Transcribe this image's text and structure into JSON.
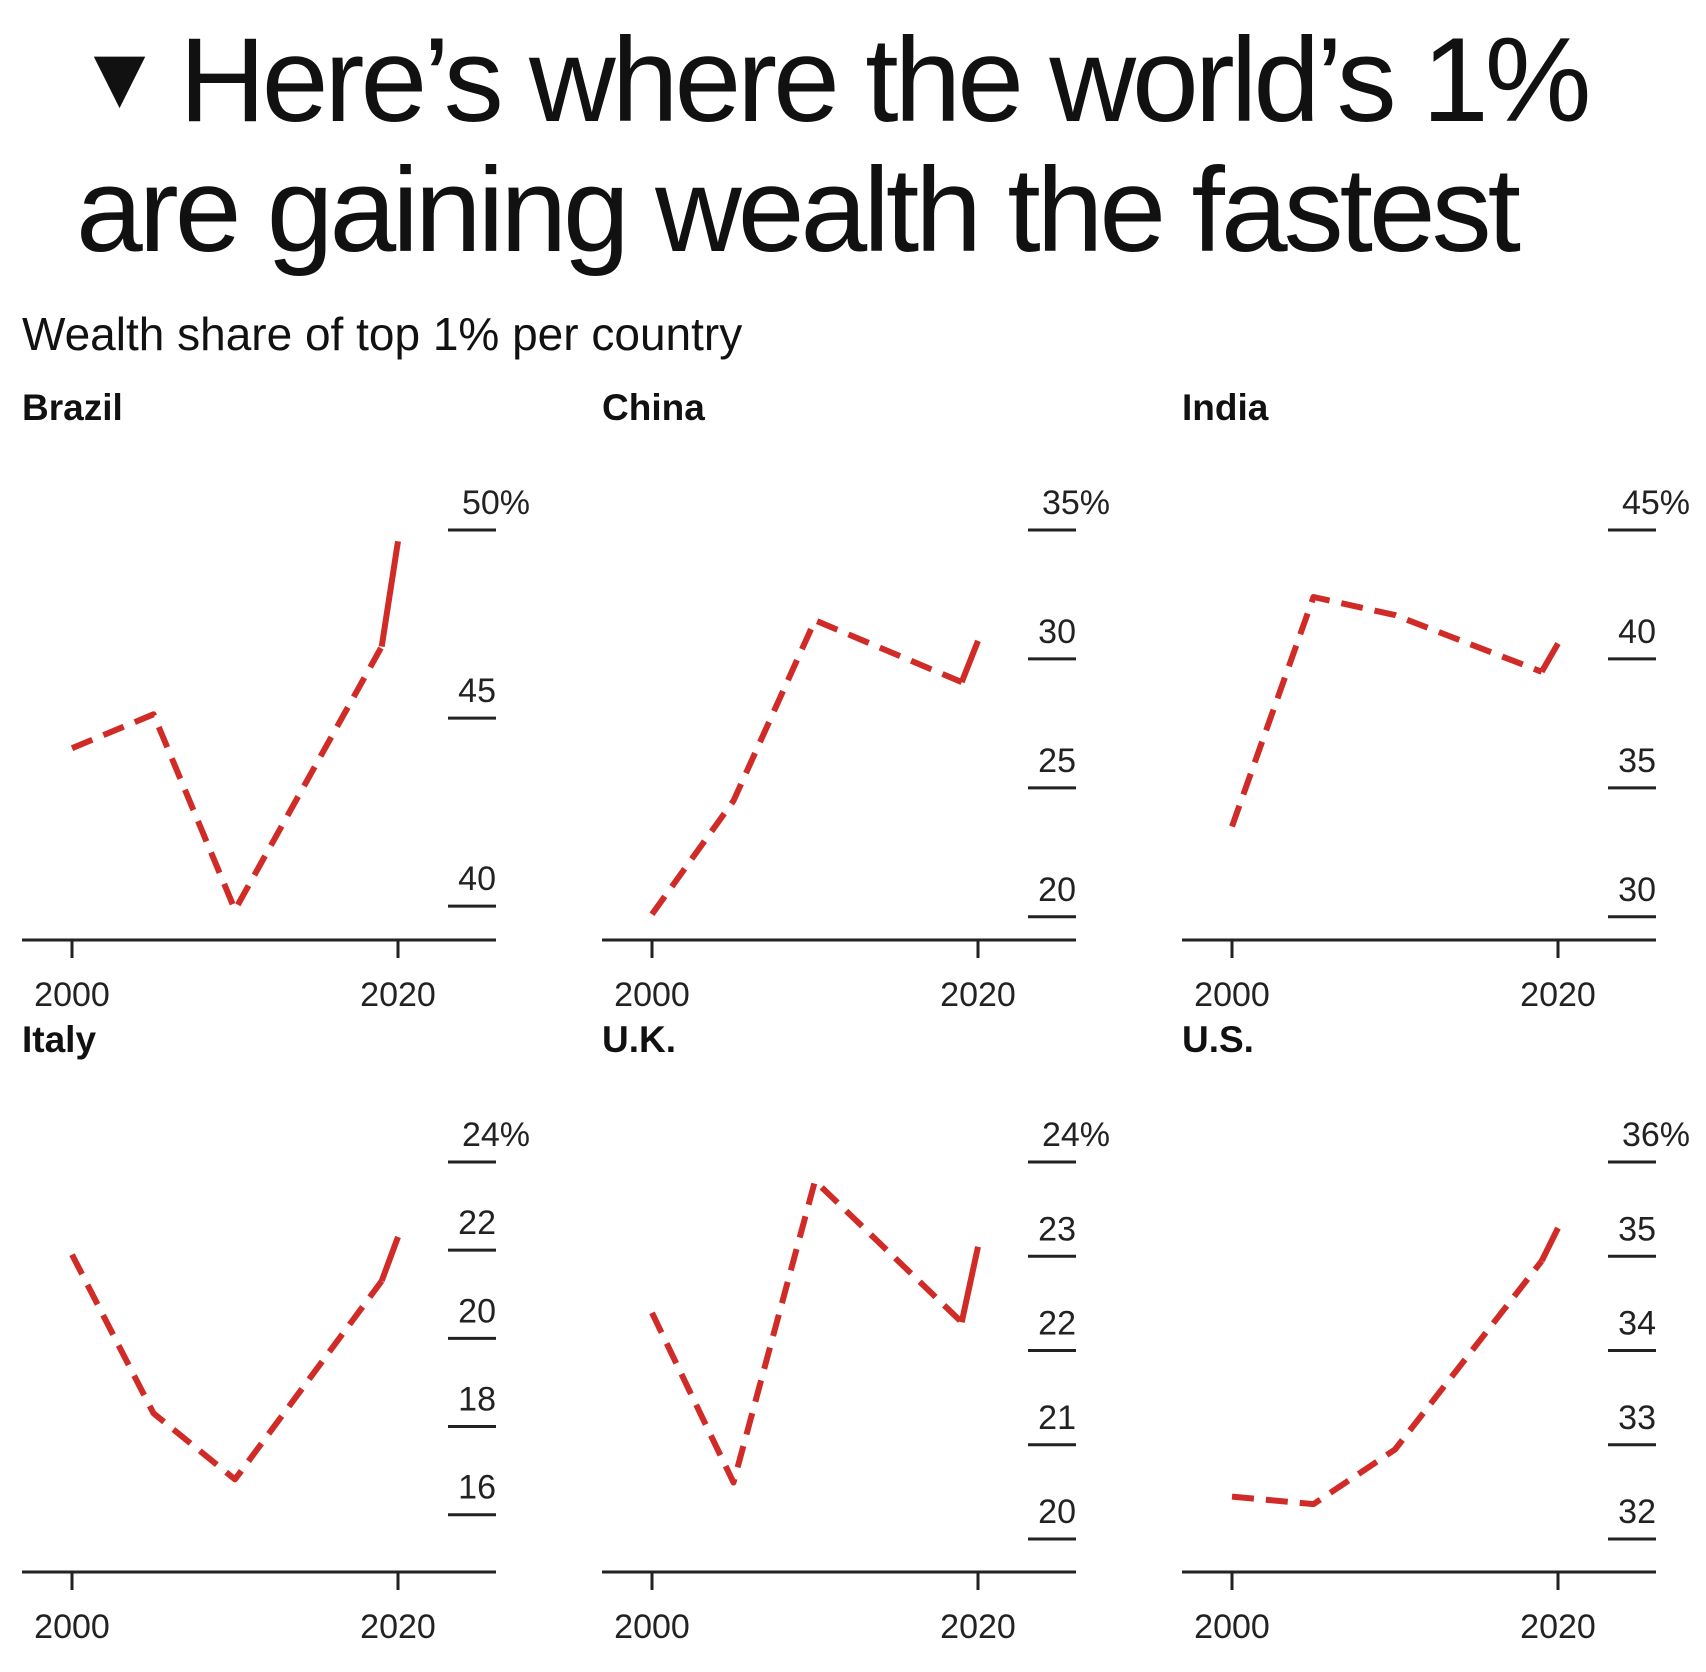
{
  "header": {
    "marker": "▼",
    "title_line1": "Here’s where the world’s 1%",
    "title_line2": "are gaining wealth the fastest",
    "subtitle": "Wealth share of top 1% per country"
  },
  "colors": {
    "series": "#d12b27",
    "text": "#111111",
    "axis": "#222222"
  },
  "chart_data": [
    {
      "type": "line",
      "title": "Brazil",
      "x": [
        2000,
        2005,
        2010,
        2019,
        2020
      ],
      "y": [
        44.2,
        45.1,
        39.9,
        46.9,
        49.7
      ],
      "solid_from_x": 2019,
      "xlim": [
        2000,
        2020
      ],
      "ylim": [
        39.1,
        50
      ],
      "yticks": [
        40,
        45,
        50
      ],
      "ytick_labels": [
        "40",
        "45",
        "50%"
      ],
      "xticks": [
        2000,
        2020
      ],
      "xtick_labels": [
        "2000",
        "2020"
      ]
    },
    {
      "type": "line",
      "title": "China",
      "x": [
        2000,
        2005,
        2010,
        2019,
        2020
      ],
      "y": [
        20.1,
        24.5,
        31.5,
        29.1,
        30.7
      ],
      "solid_from_x": 2019,
      "xlim": [
        2000,
        2020
      ],
      "ylim": [
        19.1,
        35
      ],
      "yticks": [
        20,
        25,
        30,
        35
      ],
      "ytick_labels": [
        "20",
        "25",
        "30",
        "35%"
      ],
      "xticks": [
        2000,
        2020
      ],
      "xtick_labels": [
        "2000",
        "2020"
      ]
    },
    {
      "type": "line",
      "title": "India",
      "x": [
        2000,
        2005,
        2010,
        2019,
        2020
      ],
      "y": [
        33.5,
        42.4,
        41.7,
        39.5,
        40.6
      ],
      "solid_from_x": 2019,
      "xlim": [
        2000,
        2020
      ],
      "ylim": [
        29.1,
        45
      ],
      "yticks": [
        30,
        35,
        40,
        45
      ],
      "ytick_labels": [
        "30",
        "35",
        "40",
        "45%"
      ],
      "xticks": [
        2000,
        2020
      ],
      "xtick_labels": [
        "2000",
        "2020"
      ]
    },
    {
      "type": "line",
      "title": "Italy",
      "x": [
        2000,
        2005,
        2010,
        2019,
        2020
      ],
      "y": [
        21.9,
        18.3,
        16.8,
        21.3,
        22.3
      ],
      "solid_from_x": 2019,
      "xlim": [
        2000,
        2020
      ],
      "ylim": [
        14.7,
        24
      ],
      "yticks": [
        16,
        18,
        20,
        22,
        24
      ],
      "ytick_labels": [
        "16",
        "18",
        "20",
        "22",
        "24%"
      ],
      "xticks": [
        2000,
        2020
      ],
      "xtick_labels": [
        "2000",
        "2020"
      ]
    },
    {
      "type": "line",
      "title": "U.K.",
      "x": [
        2000,
        2005,
        2010,
        2019,
        2020
      ],
      "y": [
        22.4,
        20.6,
        23.8,
        22.3,
        23.1
      ],
      "solid_from_x": 2019,
      "xlim": [
        2000,
        2020
      ],
      "ylim": [
        19.65,
        24
      ],
      "yticks": [
        20,
        21,
        22,
        23,
        24
      ],
      "ytick_labels": [
        "20",
        "21",
        "22",
        "23",
        "24%"
      ],
      "xticks": [
        2000,
        2020
      ],
      "xtick_labels": [
        "2000",
        "2020"
      ]
    },
    {
      "type": "line",
      "title": "U.S.",
      "x": [
        2000,
        2005,
        2010,
        2019,
        2020
      ],
      "y": [
        32.45,
        32.37,
        32.95,
        34.95,
        35.3
      ],
      "solid_from_x": 2019,
      "xlim": [
        2000,
        2020
      ],
      "ylim": [
        31.65,
        36
      ],
      "yticks": [
        32,
        33,
        34,
        35,
        36
      ],
      "ytick_labels": [
        "32",
        "33",
        "34",
        "35",
        "36%"
      ],
      "xticks": [
        2000,
        2020
      ],
      "xtick_labels": [
        "2000",
        "2020"
      ]
    }
  ]
}
